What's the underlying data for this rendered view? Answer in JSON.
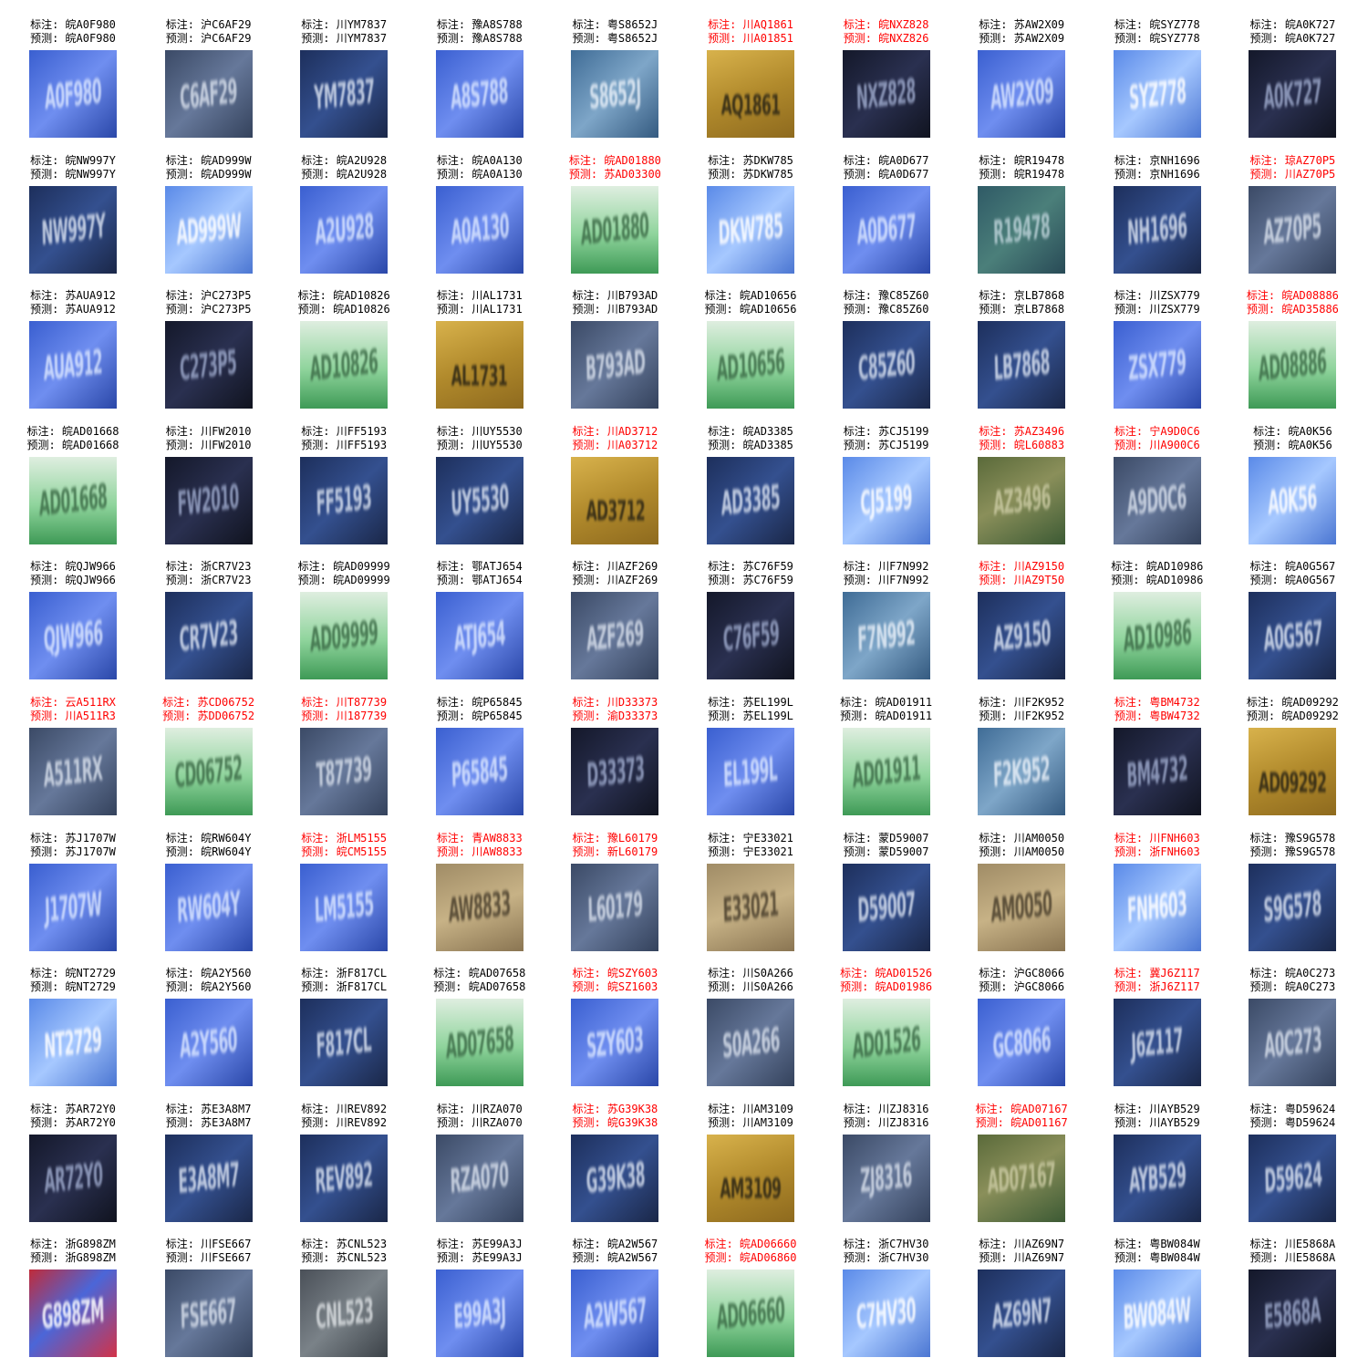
{
  "prefix_gt": "标注: ",
  "prefix_pred": "预测: ",
  "colors": {
    "correct_text": "#000000",
    "error_text": "#ff0000",
    "plate_blue": "#2a4fb0",
    "plate_green": "#6cc884",
    "plate_yellow": "#c8a43c"
  },
  "samples": [
    {
      "gt": "皖A0F980",
      "pred": "皖A0F980",
      "plate": "blue",
      "icon": "license-plate-crop"
    },
    {
      "gt": "沪C6AF29",
      "pred": "沪C6AF29",
      "plate": "slate",
      "icon": "license-plate-crop"
    },
    {
      "gt": "川YM7837",
      "pred": "川YM7837",
      "plate": "navy",
      "icon": "license-plate-crop"
    },
    {
      "gt": "豫A8S788",
      "pred": "豫A8S788",
      "plate": "blue",
      "icon": "license-plate-crop"
    },
    {
      "gt": "粤S8652J",
      "pred": "粤S8652J",
      "plate": "steel",
      "icon": "license-plate-crop"
    },
    {
      "gt": "川AQ1861",
      "pred": "川A01851",
      "plate": "yellow",
      "icon": "license-plate-crop"
    },
    {
      "gt": "皖NXZ828",
      "pred": "皖NXZ826",
      "plate": "dark",
      "icon": "license-plate-crop"
    },
    {
      "gt": "苏AW2X09",
      "pred": "苏AW2X09",
      "plate": "blue",
      "icon": "license-plate-crop"
    },
    {
      "gt": "皖SYZ778",
      "pred": "皖SYZ778",
      "plate": "lightblue",
      "icon": "license-plate-crop"
    },
    {
      "gt": "皖A0K727",
      "pred": "皖A0K727",
      "plate": "dark",
      "icon": "license-plate-crop"
    },
    {
      "gt": "皖NW997Y",
      "pred": "皖NW997Y",
      "plate": "navy",
      "icon": "license-plate-crop"
    },
    {
      "gt": "皖AD999W",
      "pred": "皖AD999W",
      "plate": "lightblue",
      "icon": "license-plate-crop"
    },
    {
      "gt": "皖A2U928",
      "pred": "皖A2U928",
      "plate": "blue",
      "icon": "license-plate-crop"
    },
    {
      "gt": "皖A0A130",
      "pred": "皖A0A130",
      "plate": "blue",
      "icon": "license-plate-crop"
    },
    {
      "gt": "皖AD01880",
      "pred": "苏AD03300",
      "plate": "green",
      "icon": "license-plate-crop"
    },
    {
      "gt": "苏DKW785",
      "pred": "苏DKW785",
      "plate": "lightblue",
      "icon": "license-plate-crop"
    },
    {
      "gt": "皖A0D677",
      "pred": "皖A0D677",
      "plate": "blue",
      "icon": "license-plate-crop"
    },
    {
      "gt": "皖R19478",
      "pred": "皖R19478",
      "plate": "teal",
      "icon": "license-plate-crop"
    },
    {
      "gt": "京NH1696",
      "pred": "京NH1696",
      "plate": "navy",
      "icon": "license-plate-crop"
    },
    {
      "gt": "琼AZ70P5",
      "pred": "川AZ70P5",
      "plate": "slate",
      "icon": "license-plate-crop"
    },
    {
      "gt": "苏AUA912",
      "pred": "苏AUA912",
      "plate": "blue",
      "icon": "license-plate-crop"
    },
    {
      "gt": "沪C273P5",
      "pred": "沪C273P5",
      "plate": "dark",
      "icon": "license-plate-crop"
    },
    {
      "gt": "皖AD10826",
      "pred": "皖AD10826",
      "plate": "green",
      "icon": "license-plate-crop"
    },
    {
      "gt": "川AL1731",
      "pred": "川AL1731",
      "plate": "yellow",
      "icon": "license-plate-crop"
    },
    {
      "gt": "川B793AD",
      "pred": "川B793AD",
      "plate": "slate",
      "icon": "license-plate-crop"
    },
    {
      "gt": "皖AD10656",
      "pred": "皖AD10656",
      "plate": "green",
      "icon": "license-plate-crop"
    },
    {
      "gt": "豫C85Z60",
      "pred": "豫C85Z60",
      "plate": "navy",
      "icon": "license-plate-crop"
    },
    {
      "gt": "京LB7868",
      "pred": "京LB7868",
      "plate": "navy",
      "icon": "license-plate-crop"
    },
    {
      "gt": "川ZSX779",
      "pred": "川ZSX779",
      "plate": "blue",
      "icon": "license-plate-crop"
    },
    {
      "gt": "皖AD08886",
      "pred": "皖AD35886",
      "plate": "green",
      "icon": "license-plate-crop"
    },
    {
      "gt": "皖AD01668",
      "pred": "皖AD01668",
      "plate": "green",
      "icon": "license-plate-crop"
    },
    {
      "gt": "川FW2010",
      "pred": "川FW2010",
      "plate": "dark",
      "icon": "license-plate-crop"
    },
    {
      "gt": "川FF5193",
      "pred": "川FF5193",
      "plate": "navy",
      "icon": "license-plate-crop"
    },
    {
      "gt": "川UY5530",
      "pred": "川UY5530",
      "plate": "navy",
      "icon": "license-plate-crop"
    },
    {
      "gt": "川AD3712",
      "pred": "川A03712",
      "plate": "yellow",
      "icon": "license-plate-crop"
    },
    {
      "gt": "皖AD3385",
      "pred": "皖AD3385",
      "plate": "navy",
      "icon": "license-plate-crop"
    },
    {
      "gt": "苏CJ5199",
      "pred": "苏CJ5199",
      "plate": "lightblue",
      "icon": "license-plate-crop"
    },
    {
      "gt": "苏AZ3496",
      "pred": "皖L60883",
      "plate": "olive",
      "icon": "license-plate-crop"
    },
    {
      "gt": "宁A9D0C6",
      "pred": "川A900C6",
      "plate": "slate",
      "icon": "license-plate-crop"
    },
    {
      "gt": "皖A0K56",
      "pred": "皖A0K56",
      "plate": "lightblue",
      "icon": "license-plate-crop"
    },
    {
      "gt": "皖QJW966",
      "pred": "皖QJW966",
      "plate": "blue",
      "icon": "license-plate-crop"
    },
    {
      "gt": "浙CR7V23",
      "pred": "浙CR7V23",
      "plate": "navy",
      "icon": "license-plate-crop"
    },
    {
      "gt": "皖AD09999",
      "pred": "皖AD09999",
      "plate": "green",
      "icon": "license-plate-crop"
    },
    {
      "gt": "鄂ATJ654",
      "pred": "鄂ATJ654",
      "plate": "blue",
      "icon": "license-plate-crop"
    },
    {
      "gt": "川AZF269",
      "pred": "川AZF269",
      "plate": "slate",
      "icon": "license-plate-crop"
    },
    {
      "gt": "苏C76F59",
      "pred": "苏C76F59",
      "plate": "dark",
      "icon": "license-plate-crop"
    },
    {
      "gt": "川F7N992",
      "pred": "川F7N992",
      "plate": "steel",
      "icon": "license-plate-crop"
    },
    {
      "gt": "川AZ9150",
      "pred": "川AZ9T50",
      "plate": "navy",
      "icon": "license-plate-crop"
    },
    {
      "gt": "皖AD10986",
      "pred": "皖AD10986",
      "plate": "green",
      "icon": "license-plate-crop"
    },
    {
      "gt": "皖A0G567",
      "pred": "皖A0G567",
      "plate": "navy",
      "icon": "license-plate-crop"
    },
    {
      "gt": "云A511RX",
      "pred": "川A511R3",
      "plate": "slate",
      "icon": "license-plate-crop"
    },
    {
      "gt": "苏CD06752",
      "pred": "苏DD06752",
      "plate": "green",
      "icon": "license-plate-crop"
    },
    {
      "gt": "川T87739",
      "pred": "川187739",
      "plate": "slate",
      "icon": "license-plate-crop"
    },
    {
      "gt": "皖P65845",
      "pred": "皖P65845",
      "plate": "blue",
      "icon": "license-plate-crop"
    },
    {
      "gt": "川D33373",
      "pred": "渝D33373",
      "plate": "dark",
      "icon": "license-plate-crop"
    },
    {
      "gt": "苏EL199L",
      "pred": "苏EL199L",
      "plate": "blue",
      "icon": "license-plate-crop"
    },
    {
      "gt": "皖AD01911",
      "pred": "皖AD01911",
      "plate": "green",
      "icon": "license-plate-crop"
    },
    {
      "gt": "川F2K952",
      "pred": "川F2K952",
      "plate": "steel",
      "icon": "license-plate-crop"
    },
    {
      "gt": "粤BM4732",
      "pred": "粤BW4732",
      "plate": "dark",
      "icon": "license-plate-crop"
    },
    {
      "gt": "皖AD09292",
      "pred": "皖AD09292",
      "plate": "yellow",
      "icon": "license-plate-crop"
    },
    {
      "gt": "苏J1707W",
      "pred": "苏J1707W",
      "plate": "blue",
      "icon": "license-plate-crop"
    },
    {
      "gt": "皖RW604Y",
      "pred": "皖RW604Y",
      "plate": "blue",
      "icon": "license-plate-crop"
    },
    {
      "gt": "浙LM5155",
      "pred": "皖CM5155",
      "plate": "blue",
      "icon": "license-plate-crop"
    },
    {
      "gt": "青AW8833",
      "pred": "川AW8833",
      "plate": "tan",
      "icon": "license-plate-crop"
    },
    {
      "gt": "豫L60179",
      "pred": "新L60179",
      "plate": "slate",
      "icon": "license-plate-crop"
    },
    {
      "gt": "宁E33021",
      "pred": "宁E33021",
      "plate": "tan",
      "icon": "license-plate-crop"
    },
    {
      "gt": "蒙D59007",
      "pred": "蒙D59007",
      "plate": "navy",
      "icon": "license-plate-crop"
    },
    {
      "gt": "川AM0050",
      "pred": "川AM0050",
      "plate": "tan",
      "icon": "license-plate-crop"
    },
    {
      "gt": "川FNH603",
      "pred": "浙FNH603",
      "plate": "lightblue",
      "icon": "license-plate-crop"
    },
    {
      "gt": "豫S9G578",
      "pred": "豫S9G578",
      "plate": "navy",
      "icon": "license-plate-crop"
    },
    {
      "gt": "皖NT2729",
      "pred": "皖NT2729",
      "plate": "lightblue",
      "icon": "license-plate-crop"
    },
    {
      "gt": "皖A2Y560",
      "pred": "皖A2Y560",
      "plate": "blue",
      "icon": "license-plate-crop"
    },
    {
      "gt": "浙F817CL",
      "pred": "浙F817CL",
      "plate": "navy",
      "icon": "license-plate-crop"
    },
    {
      "gt": "皖AD07658",
      "pred": "皖AD07658",
      "plate": "green",
      "icon": "license-plate-crop"
    },
    {
      "gt": "皖SZY603",
      "pred": "皖SZ1603",
      "plate": "blue",
      "icon": "license-plate-crop"
    },
    {
      "gt": "川S0A266",
      "pred": "川S0A266",
      "plate": "slate",
      "icon": "license-plate-crop"
    },
    {
      "gt": "皖AD01526",
      "pred": "皖AD01986",
      "plate": "green",
      "icon": "license-plate-crop"
    },
    {
      "gt": "沪GC8066",
      "pred": "沪GC8066",
      "plate": "blue",
      "icon": "license-plate-crop"
    },
    {
      "gt": "冀J6Z117",
      "pred": "浙J6Z117",
      "plate": "navy",
      "icon": "license-plate-crop"
    },
    {
      "gt": "皖A0C273",
      "pred": "皖A0C273",
      "plate": "slate",
      "icon": "license-plate-crop"
    },
    {
      "gt": "苏AR72Y0",
      "pred": "苏AR72Y0",
      "plate": "dark",
      "icon": "license-plate-crop"
    },
    {
      "gt": "苏E3A8M7",
      "pred": "苏E3A8M7",
      "plate": "navy",
      "icon": "license-plate-crop"
    },
    {
      "gt": "川REV892",
      "pred": "川REV892",
      "plate": "navy",
      "icon": "license-plate-crop"
    },
    {
      "gt": "川RZA070",
      "pred": "川RZA070",
      "plate": "slate",
      "icon": "license-plate-crop"
    },
    {
      "gt": "苏G39K38",
      "pred": "皖G39K38",
      "plate": "navy",
      "icon": "license-plate-crop"
    },
    {
      "gt": "川AM3109",
      "pred": "川AM3109",
      "plate": "yellow",
      "icon": "license-plate-crop"
    },
    {
      "gt": "川ZJ8316",
      "pred": "川ZJ8316",
      "plate": "slate",
      "icon": "license-plate-crop"
    },
    {
      "gt": "皖AD07167",
      "pred": "皖AD01167",
      "plate": "olive",
      "icon": "license-plate-crop"
    },
    {
      "gt": "川AYB529",
      "pred": "川AYB529",
      "plate": "navy",
      "icon": "license-plate-crop"
    },
    {
      "gt": "粤D59624",
      "pred": "粤D59624",
      "plate": "navy",
      "icon": "license-plate-crop"
    },
    {
      "gt": "浙G898ZM",
      "pred": "浙G898ZM",
      "plate": "red",
      "icon": "license-plate-crop"
    },
    {
      "gt": "川FSE667",
      "pred": "川FSE667",
      "plate": "slate",
      "icon": "license-plate-crop"
    },
    {
      "gt": "苏CNL523",
      "pred": "苏CNL523",
      "plate": "gray",
      "icon": "license-plate-crop"
    },
    {
      "gt": "苏E99A3J",
      "pred": "苏E99A3J",
      "plate": "blue",
      "icon": "license-plate-crop"
    },
    {
      "gt": "皖A2W567",
      "pred": "皖A2W567",
      "plate": "blue",
      "icon": "license-plate-crop"
    },
    {
      "gt": "皖AD06660",
      "pred": "皖AD06860",
      "plate": "green",
      "icon": "license-plate-crop"
    },
    {
      "gt": "浙C7HV30",
      "pred": "浙C7HV30",
      "plate": "lightblue",
      "icon": "license-plate-crop"
    },
    {
      "gt": "川AZ69N7",
      "pred": "川AZ69N7",
      "plate": "navy",
      "icon": "license-plate-crop"
    },
    {
      "gt": "粤BW084W",
      "pred": "粤BW084W",
      "plate": "lightblue",
      "icon": "license-plate-crop"
    },
    {
      "gt": "川E5868A",
      "pred": "川E5868A",
      "plate": "dark",
      "icon": "license-plate-crop"
    }
  ]
}
